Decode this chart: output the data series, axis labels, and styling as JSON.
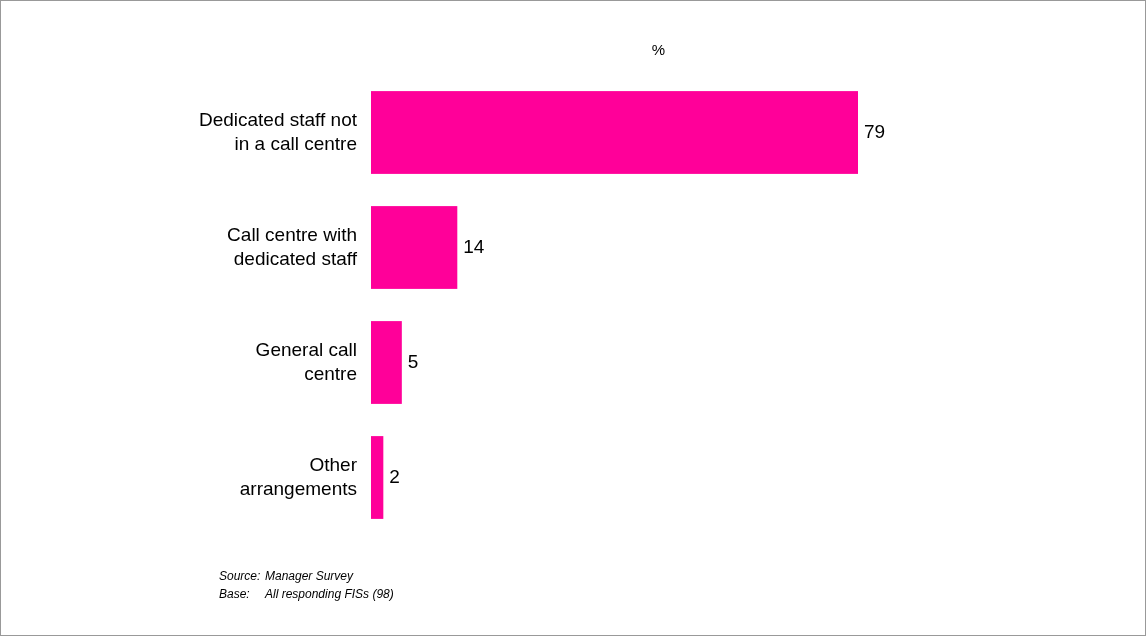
{
  "chart_data": {
    "type": "bar",
    "orientation": "horizontal",
    "xlabel": "%",
    "categories": [
      "Dedicated staff not\nin a call centre",
      "Call centre with\ndedicated staff",
      "General call\ncentre",
      "Other\narrangements"
    ],
    "values": [
      79,
      14,
      5,
      2
    ],
    "color": "#ff0099",
    "data_labels": true,
    "annotations": [
      "Source:\tManager Survey",
      "Base:\tAll responding FISs (98)"
    ]
  }
}
